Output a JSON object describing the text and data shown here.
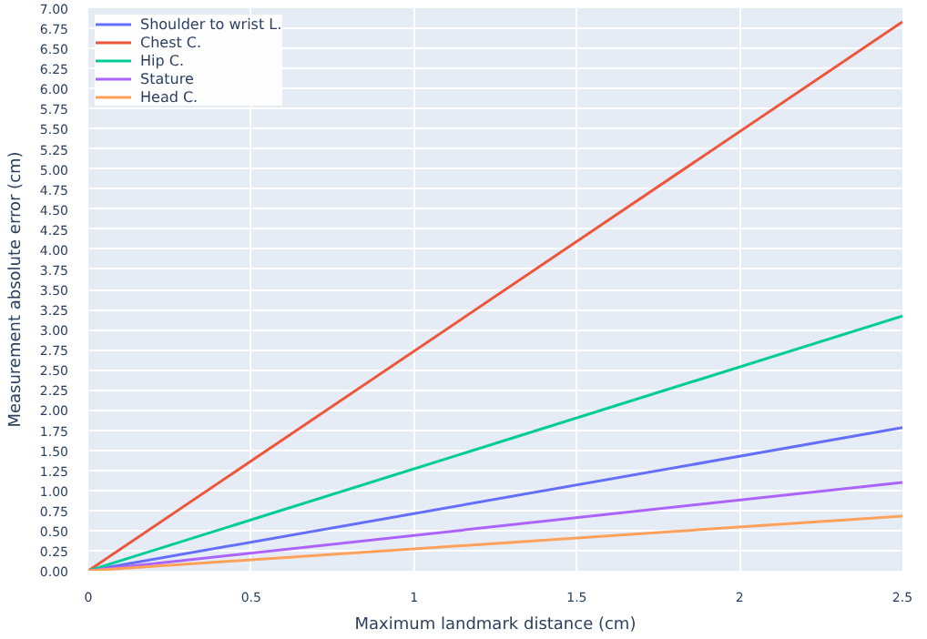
{
  "chart_data": {
    "type": "line",
    "xlabel": "Maximum landmark distance (cm)",
    "ylabel": "Measurement absolute error (cm)",
    "x": [
      0,
      2.5
    ],
    "series": [
      {
        "name": "Shoulder to wrist L.",
        "color": "#636efa",
        "values": [
          0,
          1.78
        ]
      },
      {
        "name": "Chest C.",
        "color": "#ef553b",
        "values": [
          0,
          6.83
        ]
      },
      {
        "name": "Hip C.",
        "color": "#00cc96",
        "values": [
          0,
          3.17
        ]
      },
      {
        "name": "Stature",
        "color": "#ab63fa",
        "values": [
          0,
          1.1
        ]
      },
      {
        "name": "Head C.",
        "color": "#ffa15a",
        "values": [
          0,
          0.68
        ]
      }
    ],
    "xlim": [
      0,
      2.5
    ],
    "xticks": [
      0,
      0.5,
      1,
      1.5,
      2,
      2.5
    ],
    "ylim": [
      0,
      7
    ],
    "yticks": [
      {
        "value": 0,
        "label": "0.00"
      },
      {
        "value": 0.25,
        "label": "0.25"
      },
      {
        "value": 0.5,
        "label": "0.50"
      },
      {
        "value": 0.75,
        "label": "0.75"
      },
      {
        "value": 1,
        "label": "1.00"
      },
      {
        "value": 1.25,
        "label": "1.25"
      },
      {
        "value": 1.5,
        "label": "1.50"
      },
      {
        "value": 1.75,
        "label": "1.75"
      },
      {
        "value": 2,
        "label": "2.00"
      },
      {
        "value": 2.25,
        "label": "2.25"
      },
      {
        "value": 2.5,
        "label": "2.50"
      },
      {
        "value": 2.75,
        "label": "2.75"
      },
      {
        "value": 3,
        "label": "3.00"
      },
      {
        "value": 3.25,
        "label": "3.25"
      },
      {
        "value": 3.5,
        "label": "3.50"
      },
      {
        "value": 3.75,
        "label": "3.75"
      },
      {
        "value": 4,
        "label": "4.00"
      },
      {
        "value": 4.25,
        "label": "4.25"
      },
      {
        "value": 4.5,
        "label": "4.50"
      },
      {
        "value": 4.75,
        "label": "4.75"
      },
      {
        "value": 5,
        "label": "5.00"
      },
      {
        "value": 5.25,
        "label": "5.25"
      },
      {
        "value": 5.5,
        "label": "5.50"
      },
      {
        "value": 5.75,
        "label": "5.75"
      },
      {
        "value": 6,
        "label": "6.00"
      },
      {
        "value": 6.25,
        "label": "6.25"
      },
      {
        "value": 6.5,
        "label": "6.50"
      },
      {
        "value": 6.75,
        "label": "6.75"
      },
      {
        "value": 7,
        "label": "7.00"
      }
    ],
    "grid": true,
    "legend": "top left"
  }
}
